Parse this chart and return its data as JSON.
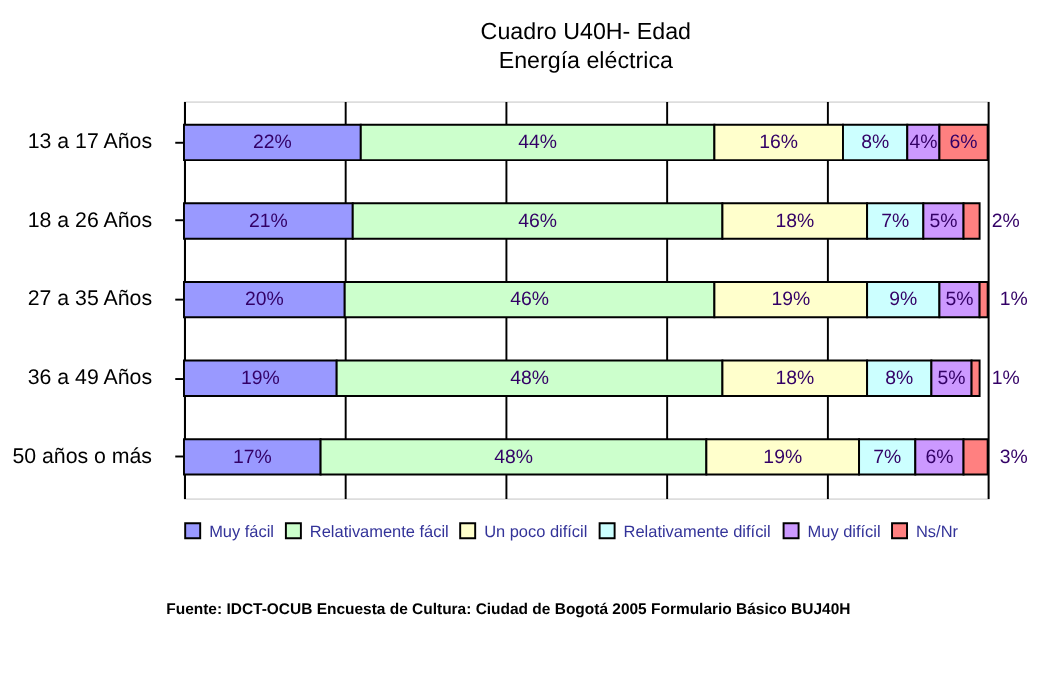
{
  "chart_data": {
    "type": "bar",
    "orientation": "horizontal",
    "stacked": true,
    "title": "Cuadro U40H- Edad",
    "subtitle": "Energía eléctrica",
    "categories": [
      "13 a 17 Años",
      "18 a 26 Años",
      "27 a 35 Años",
      "36 a 49 Años",
      "50 años o más"
    ],
    "series": [
      {
        "name": "Muy fácil",
        "color": "#9999ff",
        "values": [
          22,
          21,
          20,
          19,
          17
        ],
        "value_labels": [
          "22%",
          "21%",
          "20%",
          "19%",
          "17%"
        ]
      },
      {
        "name": "Relativamente fácil",
        "color": "#ccffcc",
        "values": [
          44,
          46,
          46,
          48,
          48
        ],
        "value_labels": [
          "44%",
          "46%",
          "46%",
          "48%",
          "48%"
        ]
      },
      {
        "name": "Un poco difícil",
        "color": "#ffffcc",
        "values": [
          16,
          18,
          19,
          18,
          19
        ],
        "value_labels": [
          "16%",
          "18%",
          "19%",
          "18%",
          "19%"
        ]
      },
      {
        "name": "Relativamente difícil",
        "color": "#ccffff",
        "values": [
          8,
          7,
          9,
          8,
          7
        ],
        "value_labels": [
          "8%",
          "7%",
          "9%",
          "8%",
          "7%"
        ]
      },
      {
        "name": "Muy difícil",
        "color": "#cc99ff",
        "values": [
          4,
          5,
          5,
          5,
          6
        ],
        "value_labels": [
          "4%",
          "5%",
          "5%",
          "5%",
          "6%"
        ]
      },
      {
        "name": "Ns/Nr",
        "color": "#ff8080",
        "values": [
          6,
          2,
          1,
          1,
          3
        ],
        "value_labels": [
          "6%",
          "2%",
          "1%",
          "1%",
          "3%"
        ]
      }
    ],
    "xlim": [
      0,
      100
    ],
    "xticks": [
      {
        "value": 0,
        "label": null
      },
      {
        "value": 20,
        "label": null
      },
      {
        "value": 40,
        "label": null
      },
      {
        "value": 60,
        "label": null
      },
      {
        "value": 80,
        "label": null
      },
      {
        "value": 100,
        "label": null
      }
    ],
    "grid": "x",
    "tick_labels": "y",
    "legend": "bottom",
    "annotations": [
      "Fuente: IDCT-OCUB Encuesta de Cultura: Ciudad de Bogotá 2005 Formulario Básico BUJ40H"
    ]
  }
}
